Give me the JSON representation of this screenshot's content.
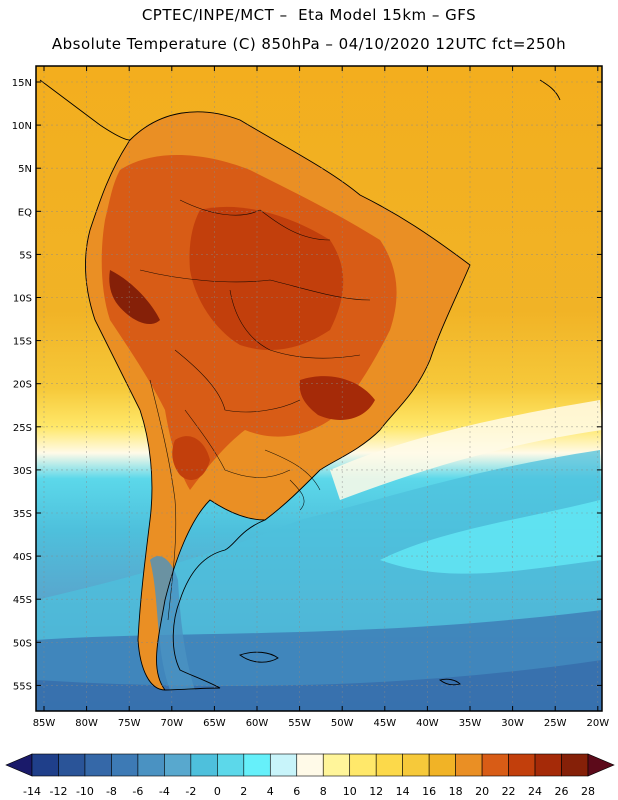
{
  "header": {
    "line1": "CPTEC/INPE/MCT –  Eta Model 15km – GFS",
    "line2": "Absolute Temperature (C) 850hPa – 04/10/2020 12UTC fct=250h"
  },
  "map": {
    "lat_labels": [
      "15N",
      "10N",
      "5N",
      "EQ",
      "5S",
      "10S",
      "15S",
      "20S",
      "25S",
      "30S",
      "35S",
      "40S",
      "45S",
      "50S",
      "55S"
    ],
    "lon_labels": [
      "85W",
      "80W",
      "75W",
      "70W",
      "65W",
      "60W",
      "55W",
      "50W",
      "45W",
      "40W",
      "35W",
      "30W",
      "25W",
      "20W"
    ],
    "grid": true,
    "land_outline": true
  },
  "colorbar": {
    "tick_labels": [
      "-14",
      "-12",
      "-10",
      "-8",
      "-6",
      "-4",
      "-2",
      "0",
      "2",
      "4",
      "6",
      "8",
      "10",
      "12",
      "14",
      "16",
      "18",
      "20",
      "22",
      "24",
      "26",
      "28"
    ],
    "low_extend_color": "#1a1a6a",
    "high_extend_color": "#5c0a1a",
    "colors": [
      "#1f3f8a",
      "#2a5498",
      "#3568a8",
      "#3d7ab5",
      "#4a92c2",
      "#58a8ce",
      "#4ec0dc",
      "#5cd8ea",
      "#66f0fa",
      "#c8f4fa",
      "#fffae8",
      "#fff59a",
      "#ffe86a",
      "#fcd94a",
      "#f6c93a",
      "#f1b326",
      "#ea8f24",
      "#d85c16",
      "#c23f0c",
      "#a52a08",
      "#852008"
    ]
  }
}
